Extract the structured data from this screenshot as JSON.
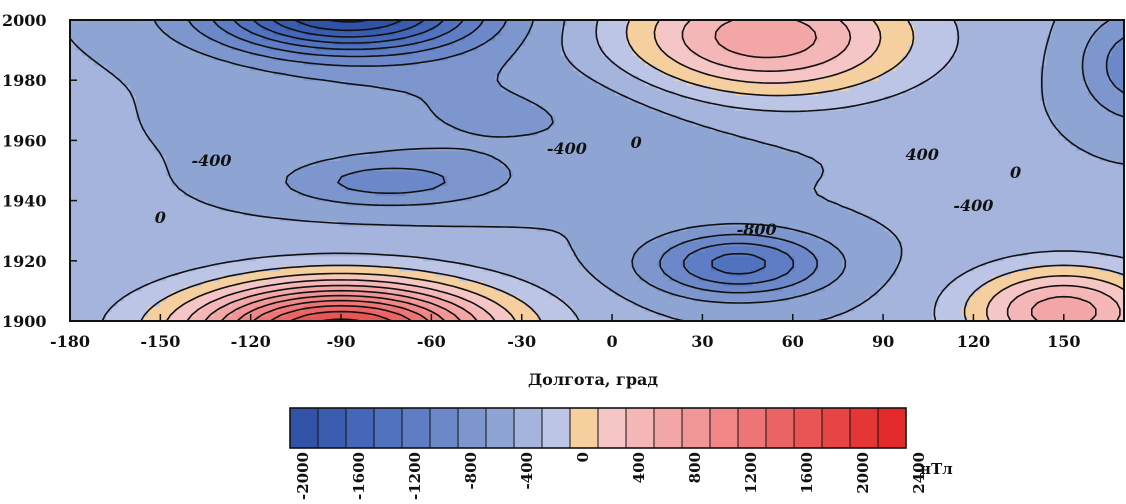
{
  "chart_data": {
    "type": "heatmap",
    "title": "",
    "xlabel": "Долгота, град",
    "ylabel": "",
    "xlim": [
      -180,
      170
    ],
    "ylim": [
      1900,
      2000
    ],
    "x_ticks": [
      "-180",
      "-150",
      "-120",
      "-90",
      "-60",
      "-30",
      "0",
      "30",
      "60",
      "90",
      "120",
      "150"
    ],
    "x_tick_values": [
      -180,
      -150,
      -120,
      -90,
      -60,
      -30,
      0,
      30,
      60,
      90,
      120,
      150
    ],
    "y_ticks": [
      "2000",
      "1980",
      "1960",
      "1940",
      "1920",
      "1900"
    ],
    "y_tick_values": [
      2000,
      1980,
      1960,
      1940,
      1920,
      1900
    ],
    "contour_interval": 200,
    "contour_labels": [
      {
        "text": "-400",
        "lon": -133,
        "year": 1953
      },
      {
        "text": "0",
        "lon": -150,
        "year": 1934
      },
      {
        "text": "-400",
        "lon": -15,
        "year": 1957
      },
      {
        "text": "0",
        "lon": 8,
        "year": 1959
      },
      {
        "text": "400",
        "lon": 103,
        "year": 1955
      },
      {
        "text": "0",
        "lon": 134,
        "year": 1949
      },
      {
        "text": "-400",
        "lon": 120,
        "year": 1938
      },
      {
        "text": "-800",
        "lon": 48,
        "year": 1930
      }
    ],
    "field_centers": [
      {
        "lon": -88,
        "year": 2003,
        "value": -1800
      },
      {
        "lon": -85,
        "year": 1897,
        "value": 2400
      },
      {
        "lon": 42,
        "year": 1919,
        "value": -1000
      },
      {
        "lon": -75,
        "year": 1946,
        "value": -700
      },
      {
        "lon": 45,
        "year": 2004,
        "value": 1200
      },
      {
        "lon": 60,
        "year": 1990,
        "value": 800
      },
      {
        "lon": 150,
        "year": 1903,
        "value": 1200
      },
      {
        "lon": 175,
        "year": 1985,
        "value": -700
      },
      {
        "lon": -165,
        "year": 1968,
        "value": -600
      }
    ],
    "colorbar": {
      "unit": "нТл",
      "labels": [
        "-2000",
        "-1600",
        "-1200",
        "-800",
        "-400",
        "0",
        "400",
        "800",
        "1200",
        "1600",
        "2000",
        "2400"
      ],
      "label_values": [
        -2000,
        -1600,
        -1200,
        -800,
        -400,
        0,
        400,
        800,
        1200,
        1600,
        2000,
        2400
      ],
      "bins": [
        -2000,
        -1800,
        -1600,
        -1400,
        -1200,
        -1000,
        -800,
        -600,
        -400,
        -200,
        0,
        200,
        400,
        600,
        800,
        1000,
        1200,
        1400,
        1600,
        1800,
        2000,
        2200,
        2400
      ],
      "colors": [
        "#3152a6",
        "#3a5db0",
        "#4467b9",
        "#5172bf",
        "#5f7dc4",
        "#6d88c8",
        "#7d96cd",
        "#8ea5d3",
        "#a5b4dc",
        "#bcc5e6",
        "#f6cf9e",
        "#f6c6c6",
        "#f4b6b6",
        "#f2a6a6",
        "#f19696",
        "#f08686",
        "#ee7575",
        "#ec6565",
        "#e95454",
        "#e74444",
        "#e53636",
        "#e42a2a"
      ]
    }
  }
}
